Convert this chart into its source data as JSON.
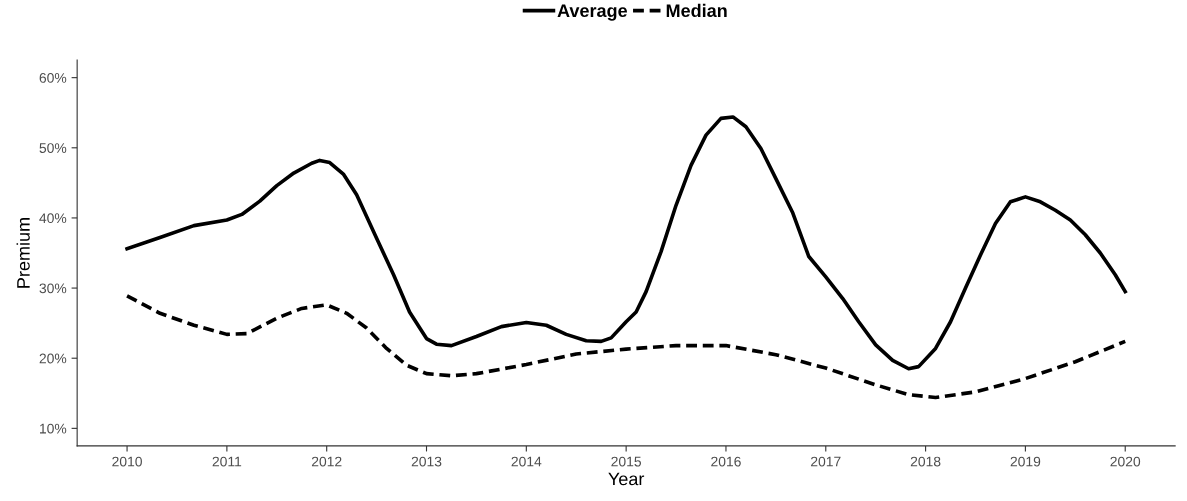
{
  "chart_data": {
    "type": "line",
    "xlabel": "Year",
    "ylabel": "Premium",
    "xlim": [
      2009.5,
      2020.5
    ],
    "xticks": [
      2010,
      2011,
      2012,
      2013,
      2014,
      2015,
      2016,
      2017,
      2018,
      2019,
      2020
    ],
    "ylim": [
      7.5,
      62.5
    ],
    "yticks": [
      {
        "value": 10,
        "label": "10%"
      },
      {
        "value": 20,
        "label": "20%"
      },
      {
        "value": 30,
        "label": "30%"
      },
      {
        "value": 40,
        "label": "40%"
      },
      {
        "value": 50,
        "label": "50%"
      },
      {
        "value": 60,
        "label": "60%"
      }
    ],
    "grid": false,
    "legend": "top",
    "marker": "none",
    "series": [
      {
        "name": "Average",
        "color": "#000000",
        "line_style": "solid",
        "x": [
          2010,
          2010.33,
          2010.67,
          2011,
          2011.15,
          2011.33,
          2011.5,
          2011.67,
          2011.85,
          2011.93,
          2012.03,
          2012.17,
          2012.3,
          2012.5,
          2012.67,
          2012.83,
          2013,
          2013.1,
          2013.25,
          2013.5,
          2013.75,
          2014,
          2014.2,
          2014.4,
          2014.6,
          2014.75,
          2014.85,
          2015,
          2015.1,
          2015.2,
          2015.35,
          2015.5,
          2015.65,
          2015.8,
          2015.95,
          2016.07,
          2016.2,
          2016.35,
          2016.5,
          2016.67,
          2016.83,
          2017,
          2017.17,
          2017.33,
          2017.5,
          2017.67,
          2017.83,
          2017.93,
          2018.1,
          2018.25,
          2018.4,
          2018.55,
          2018.7,
          2018.85,
          2019,
          2019.15,
          2019.3,
          2019.45,
          2019.6,
          2019.75,
          2019.9,
          2020
        ],
        "values": [
          35.6,
          37.2,
          38.9,
          39.7,
          40.5,
          42.4,
          44.6,
          46.4,
          47.8,
          48.2,
          47.9,
          46.2,
          43.3,
          37.1,
          31.9,
          26.6,
          22.8,
          22.0,
          21.8,
          23.1,
          24.5,
          25.1,
          24.7,
          23.4,
          22.5,
          22.4,
          22.9,
          25.2,
          26.6,
          29.5,
          35.2,
          41.8,
          47.5,
          51.8,
          54.2,
          54.4,
          53.0,
          49.9,
          45.6,
          40.7,
          34.5,
          31.6,
          28.5,
          25.2,
          21.9,
          19.7,
          18.5,
          18.8,
          21.4,
          25.2,
          30.0,
          34.7,
          39.2,
          42.3,
          43.0,
          42.3,
          41.1,
          39.7,
          37.6,
          35.0,
          31.9,
          29.5
        ]
      },
      {
        "name": "Median",
        "color": "#000000",
        "line_style": "dashed",
        "x": [
          2010,
          2010.33,
          2010.67,
          2011,
          2011.2,
          2011.5,
          2011.75,
          2012,
          2012.2,
          2012.4,
          2012.6,
          2012.8,
          2013,
          2013.25,
          2013.5,
          2014,
          2014.5,
          2015,
          2015.5,
          2016,
          2016.5,
          2017,
          2017.5,
          2017.83,
          2018.1,
          2018.5,
          2019,
          2019.5,
          2020
        ],
        "values": [
          28.9,
          26.4,
          24.7,
          23.4,
          23.5,
          25.7,
          27.1,
          27.6,
          26.4,
          24.3,
          21.4,
          19.0,
          17.8,
          17.5,
          17.8,
          19.1,
          20.6,
          21.3,
          21.8,
          21.8,
          20.5,
          18.6,
          16.2,
          14.8,
          14.4,
          15.2,
          17.1,
          19.5,
          22.4
        ]
      }
    ]
  }
}
